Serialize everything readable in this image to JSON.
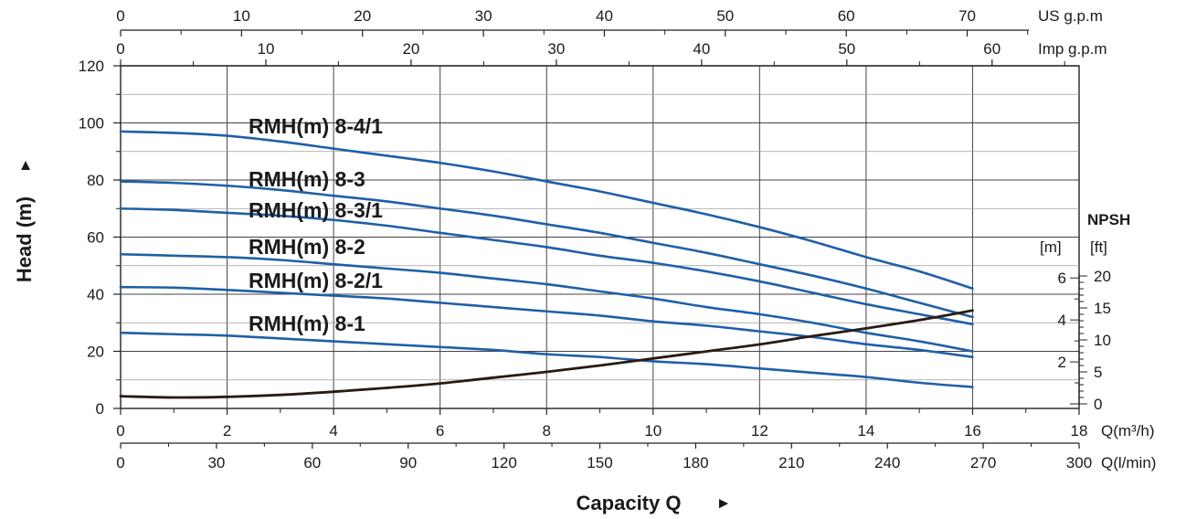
{
  "chart_data": {
    "type": "line",
    "title": "",
    "ylabel": "Head (m)",
    "ylabel_arrow": "▲",
    "xlabel": "Capacity Q",
    "xlabel_arrow": "►",
    "x_unit": "Q(m³/h)",
    "xlim": [
      0,
      18
    ],
    "ylim": [
      0,
      120
    ],
    "x_ticks": [
      0,
      2,
      4,
      6,
      8,
      10,
      12,
      14,
      16,
      18
    ],
    "y_ticks": [
      0,
      20,
      40,
      60,
      80,
      100,
      120
    ],
    "grid": true,
    "secondary_axes": {
      "us_gpm": {
        "unit": "US g.p.m",
        "ticks": [
          "0",
          "10",
          "20",
          "30",
          "40",
          "50",
          "60",
          "70"
        ]
      },
      "imp_gpm": {
        "unit": "Imp g.p.m",
        "ticks": [
          "0",
          "10",
          "20",
          "30",
          "40",
          "50",
          "60"
        ]
      },
      "l_min": {
        "unit": "Q(l/min)",
        "ticks": [
          "0",
          "30",
          "60",
          "90",
          "120",
          "150",
          "180",
          "210",
          "240",
          "270",
          "300"
        ]
      }
    },
    "npsh_axis": {
      "title": "NPSH",
      "unit_m": "[m]",
      "unit_ft": "[ft]",
      "m_ticks": [
        {
          "label": "2",
          "value": 2
        },
        {
          "label": "4",
          "value": 4
        },
        {
          "label": "6",
          "value": 6
        }
      ],
      "ft_ticks": [
        {
          "label": "0",
          "value": 0
        },
        {
          "label": "5",
          "value": 5
        },
        {
          "label": "10",
          "value": 10
        },
        {
          "label": "15",
          "value": 15
        },
        {
          "label": "20",
          "value": 20
        }
      ],
      "ft_range": [
        0,
        20
      ]
    },
    "x": [
      0,
      1,
      2,
      3,
      4,
      5,
      6,
      7,
      8,
      9,
      10,
      11,
      12,
      13,
      14,
      15,
      16
    ],
    "series": [
      {
        "name": "RMH(m) 8-4/1",
        "color": "#1f5fa8",
        "values": [
          97,
          96.5,
          95.5,
          93.5,
          91,
          88.5,
          86,
          83,
          79.5,
          76,
          72,
          68,
          63.5,
          58.5,
          53,
          48,
          42
        ]
      },
      {
        "name": "RMH(m) 8-3",
        "color": "#1f5fa8",
        "values": [
          79.5,
          79,
          78,
          76.5,
          74.5,
          72.5,
          70,
          67.5,
          64.5,
          61.5,
          58,
          54.5,
          50.5,
          46.5,
          42,
          37,
          32
        ]
      },
      {
        "name": "RMH(m) 8-3/1",
        "color": "#1f5fa8",
        "values": [
          70,
          69.5,
          68.5,
          67.5,
          66,
          64,
          61.5,
          59,
          56.5,
          53.5,
          51,
          48,
          44.5,
          40.5,
          36.5,
          33,
          29.5
        ]
      },
      {
        "name": "RMH(m) 8-2",
        "color": "#1f5fa8",
        "values": [
          54,
          53.5,
          53,
          52,
          50.5,
          49,
          47.5,
          45.5,
          43.5,
          41,
          38.5,
          35.5,
          33,
          30,
          26.5,
          23.5,
          20
        ]
      },
      {
        "name": "RMH(m) 8-2/1",
        "color": "#1f5fa8",
        "values": [
          42.5,
          42.3,
          41.5,
          40.5,
          39.5,
          38.5,
          37,
          35.5,
          34,
          32.5,
          30.5,
          29,
          27,
          25,
          22.5,
          20.5,
          18
        ]
      },
      {
        "name": "RMH(m) 8-1",
        "color": "#1f5fa8",
        "values": [
          26.5,
          26,
          25.5,
          24.5,
          23.5,
          22.5,
          21.5,
          20.5,
          19,
          18,
          16.5,
          15.5,
          14,
          12.5,
          11,
          9,
          7.5
        ]
      }
    ],
    "npsh_curve": {
      "name": "NPSH",
      "color": "#2a1a14",
      "ft_values": [
        1.2,
        1.0,
        1.1,
        1.4,
        1.9,
        2.5,
        3.2,
        4.1,
        5.0,
        6.0,
        7.1,
        8.2,
        9.3,
        10.6,
        11.8,
        13.1,
        14.6
      ]
    }
  }
}
